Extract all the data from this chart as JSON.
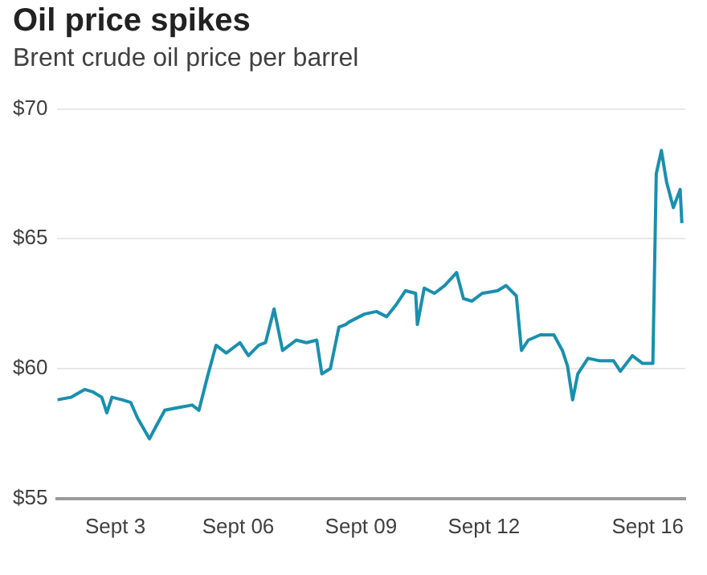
{
  "chart_data": {
    "type": "line",
    "title": "Oil price spikes",
    "subtitle": "Brent crude oil price per barrel",
    "x": [
      "--09-01T14:00",
      "--09-01T22:00",
      "--09-02T06:00",
      "--09-02T11:00",
      "--09-02T16:00",
      "--09-02T19:00",
      "--09-02T22:00",
      "--09-03T04:00",
      "--09-03T09:00",
      "--09-03T13:00",
      "--09-03T20:00",
      "--09-04T00:00",
      "--09-04T05:00",
      "--09-04T13:00",
      "--09-04T21:00",
      "--09-05T01:00",
      "--09-05T06:00",
      "--09-05T11:00",
      "--09-05T17:00",
      "--09-06T01:00",
      "--09-06T06:00",
      "--09-06T12:00",
      "--09-06T16:00",
      "--09-06T21:00",
      "--09-07T02:00",
      "--09-07T10:00",
      "--09-07T16:00",
      "--09-07T22:00",
      "--09-08T01:00",
      "--09-08T06:00",
      "--09-08T11:00",
      "--09-08T15:00",
      "--09-08T17:00",
      "--09-09T02:00",
      "--09-09T09:00",
      "--09-09T15:00",
      "--09-09T21:00",
      "--09-10T02:00",
      "--09-10T08:00",
      "--09-10T09:00",
      "--09-10T13:00",
      "--09-10T19:00",
      "--09-11T01:00",
      "--09-11T08:00",
      "--09-11T12:00",
      "--09-11T17:00",
      "--09-11T23:00",
      "--09-12T08:00",
      "--09-12T13:00",
      "--09-12T19:00",
      "--09-12T22:00",
      "--09-13T02:00",
      "--09-13T09:00",
      "--09-13T17:00",
      "--09-13T22:00",
      "--09-14T01:00",
      "--09-14T04:00",
      "--09-14T07:00",
      "--09-14T13:00",
      "--09-14T20:00",
      "--09-15T04:00",
      "--09-15T08:00",
      "--09-15T15:00",
      "--09-15T21:00",
      "--09-16T03:00",
      "--09-16T05:00",
      "--09-16T08:00",
      "--09-16T11:00",
      "--09-16T15:00",
      "--09-16T19:00",
      "--09-16T20:00"
    ],
    "series": [
      {
        "color": "#1a8fae",
        "values": [
          58.8,
          58.9,
          59.2,
          59.1,
          58.9,
          58.3,
          58.9,
          58.8,
          58.7,
          58.1,
          57.3,
          57.8,
          58.4,
          58.5,
          58.6,
          58.4,
          59.7,
          60.9,
          60.6,
          61.0,
          60.5,
          60.9,
          61.0,
          62.3,
          60.7,
          61.1,
          61.0,
          61.1,
          59.8,
          60.0,
          61.6,
          61.7,
          61.8,
          62.1,
          62.2,
          62.0,
          62.5,
          63.0,
          62.9,
          61.7,
          63.1,
          62.9,
          63.2,
          63.7,
          62.7,
          62.6,
          62.9,
          63.0,
          63.2,
          62.8,
          60.7,
          61.1,
          61.3,
          61.3,
          60.7,
          60.1,
          58.8,
          59.8,
          60.4,
          60.3,
          60.3,
          59.9,
          60.5,
          60.2,
          60.2,
          67.5,
          68.4,
          67.2,
          66.2,
          66.9,
          65.6
        ]
      }
    ],
    "xlim": [
      "--09-01T14:00",
      "--09-16T22:00"
    ],
    "xticks": [
      {
        "value": "--09-03",
        "label": "Sept 3"
      },
      {
        "value": "--09-06",
        "label": "Sept 06"
      },
      {
        "value": "--09-09",
        "label": "Sept 09"
      },
      {
        "value": "--09-12",
        "label": "Sept 12"
      },
      {
        "value": "--09-16",
        "label": "Sept 16"
      }
    ],
    "ylim": [
      55,
      70
    ],
    "yticks": [
      {
        "value": 55,
        "label": "$55"
      },
      {
        "value": 60,
        "label": "$60"
      },
      {
        "value": 65,
        "label": "$65"
      },
      {
        "value": 70,
        "label": "$70"
      }
    ],
    "grid": "y",
    "legend": false,
    "marker": "none",
    "line_style": "solid"
  }
}
